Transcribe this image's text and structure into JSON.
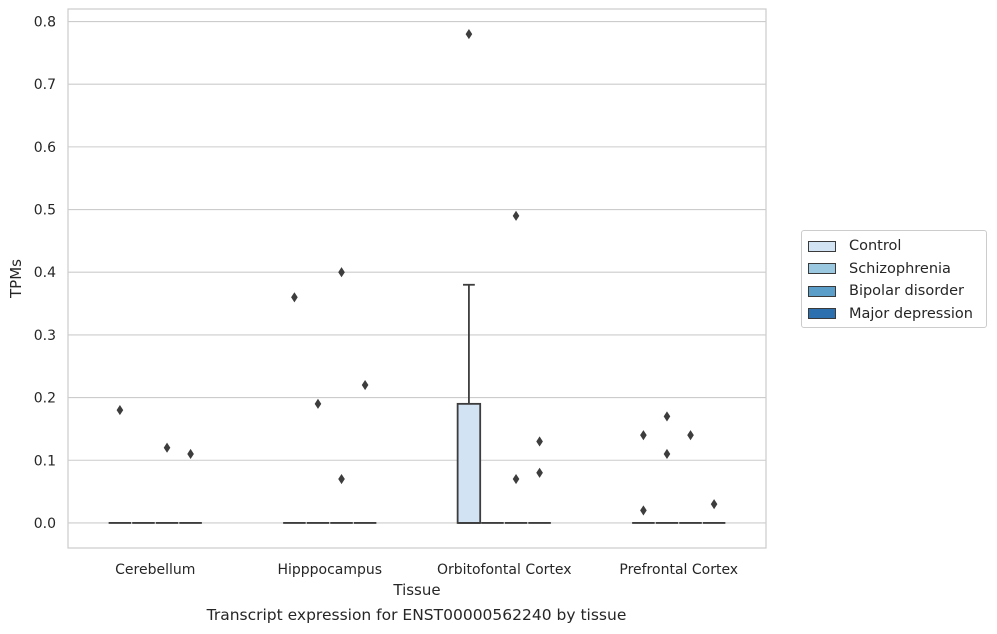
{
  "chart_data": {
    "type": "box",
    "title": "",
    "caption": "Transcript expression for ENST00000562240 by tissue",
    "xlabel": "Tissue",
    "ylabel": "TPMs",
    "ylim": [
      -0.04,
      0.82
    ],
    "yticks": [
      0.0,
      0.1,
      0.2,
      0.3,
      0.4,
      0.5,
      0.6,
      0.7,
      0.8
    ],
    "ytick_labels": [
      "0.0",
      "0.1",
      "0.2",
      "0.3",
      "0.4",
      "0.5",
      "0.6",
      "0.7",
      "0.8"
    ],
    "grid": "horizontal",
    "legend_position": "right",
    "categories": [
      "Cerebellum",
      "Hipppocampus",
      "Orbitofontal Cortex",
      "Prefrontal Cortex"
    ],
    "series": [
      {
        "name": "Control",
        "color": "#d2e3f3",
        "boxes": [
          {
            "q1": 0,
            "median": 0,
            "q3": 0,
            "whisker_low": 0,
            "whisker_high": 0,
            "outliers": [
              0.18
            ]
          },
          {
            "q1": 0,
            "median": 0,
            "q3": 0,
            "whisker_low": 0,
            "whisker_high": 0,
            "outliers": [
              0.36
            ]
          },
          {
            "q1": 0,
            "median": 0,
            "q3": 0.19,
            "whisker_low": 0,
            "whisker_high": 0.38,
            "outliers": [
              0.78
            ]
          },
          {
            "q1": 0,
            "median": 0,
            "q3": 0,
            "whisker_low": 0,
            "whisker_high": 0,
            "outliers": [
              0.14,
              0.02
            ]
          }
        ]
      },
      {
        "name": "Schizophrenia",
        "color": "#9ac8e0",
        "boxes": [
          {
            "q1": 0,
            "median": 0,
            "q3": 0,
            "whisker_low": 0,
            "whisker_high": 0,
            "outliers": []
          },
          {
            "q1": 0,
            "median": 0,
            "q3": 0,
            "whisker_low": 0,
            "whisker_high": 0,
            "outliers": [
              0.19
            ]
          },
          {
            "q1": 0,
            "median": 0,
            "q3": 0,
            "whisker_low": 0,
            "whisker_high": 0,
            "outliers": []
          },
          {
            "q1": 0,
            "median": 0,
            "q3": 0,
            "whisker_low": 0,
            "whisker_high": 0,
            "outliers": [
              0.17,
              0.11
            ]
          }
        ]
      },
      {
        "name": "Bipolar disorder",
        "color": "#5a9ec9",
        "boxes": [
          {
            "q1": 0,
            "median": 0,
            "q3": 0,
            "whisker_low": 0,
            "whisker_high": 0,
            "outliers": [
              0.12
            ]
          },
          {
            "q1": 0,
            "median": 0,
            "q3": 0,
            "whisker_low": 0,
            "whisker_high": 0,
            "outliers": [
              0.4,
              0.07
            ]
          },
          {
            "q1": 0,
            "median": 0,
            "q3": 0,
            "whisker_low": 0,
            "whisker_high": 0,
            "outliers": [
              0.49,
              0.07
            ]
          },
          {
            "q1": 0,
            "median": 0,
            "q3": 0,
            "whisker_low": 0,
            "whisker_high": 0,
            "outliers": [
              0.14
            ]
          }
        ]
      },
      {
        "name": "Major depression",
        "color": "#2c70b0",
        "boxes": [
          {
            "q1": 0,
            "median": 0,
            "q3": 0,
            "whisker_low": 0,
            "whisker_high": 0,
            "outliers": [
              0.11
            ]
          },
          {
            "q1": 0,
            "median": 0,
            "q3": 0,
            "whisker_low": 0,
            "whisker_high": 0,
            "outliers": [
              0.22
            ]
          },
          {
            "q1": 0,
            "median": 0,
            "q3": 0,
            "whisker_low": 0,
            "whisker_high": 0,
            "outliers": [
              0.13,
              0.08
            ]
          },
          {
            "q1": 0,
            "median": 0,
            "q3": 0,
            "whisker_low": 0,
            "whisker_high": 0,
            "outliers": [
              0.03
            ]
          }
        ]
      }
    ]
  }
}
